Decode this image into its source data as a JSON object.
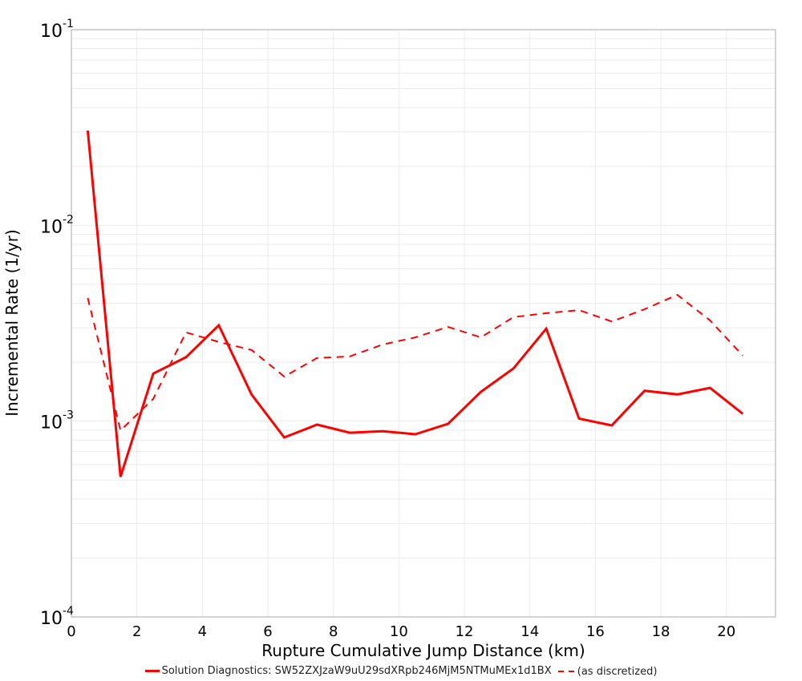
{
  "chart_data": {
    "type": "line",
    "title": "",
    "xlabel": "Rupture Cumulative Jump Distance (km)",
    "ylabel": "Incremental Rate (1/yr)",
    "xlim": [
      0,
      21.5
    ],
    "ylim": [
      0.0001,
      0.1
    ],
    "yscale": "log",
    "grid": true,
    "legend_position": "bottom",
    "x_ticks": [
      0,
      2,
      4,
      6,
      8,
      10,
      12,
      14,
      16,
      18,
      20
    ],
    "y_ticks": [
      {
        "base": "10",
        "exp": "-1",
        "value": 0.1
      },
      {
        "base": "10",
        "exp": "-2",
        "value": 0.01
      },
      {
        "base": "10",
        "exp": "-3",
        "value": 0.001
      },
      {
        "base": "10",
        "exp": "-4",
        "value": 0.0001
      }
    ],
    "x": [
      0.5,
      1.5,
      2.5,
      3.5,
      4.5,
      5.5,
      6.5,
      7.5,
      8.5,
      9.5,
      10.5,
      11.5,
      12.5,
      13.5,
      14.5,
      15.5,
      16.5,
      17.5,
      18.5,
      19.5,
      20.5
    ],
    "series": [
      {
        "name": "Solution Diagnostics: SW52ZXJzaW9uU29sdXRpb246MjM5NTMuMEx1d1BX",
        "style": "solid",
        "color": "#ff0000",
        "values": [
          0.0305,
          0.00052,
          0.00175,
          0.00212,
          0.00309,
          0.00137,
          0.000826,
          0.00096,
          0.000873,
          0.000889,
          0.000857,
          0.000969,
          0.00141,
          0.00186,
          0.00297,
          0.00103,
          0.000951,
          0.00143,
          0.00137,
          0.00148,
          0.00109
        ]
      },
      {
        "name": "(as discretized)",
        "style": "dashed",
        "color": "#ff0000",
        "values": [
          0.00426,
          0.000897,
          0.0013,
          0.00284,
          0.00254,
          0.00231,
          0.00169,
          0.0021,
          0.00214,
          0.00246,
          0.00268,
          0.00303,
          0.00268,
          0.0034,
          0.00356,
          0.00369,
          0.00323,
          0.00373,
          0.00442,
          0.00327,
          0.00216
        ]
      }
    ]
  },
  "legend": {
    "items": [
      {
        "label": "Solution Diagnostics: SW52ZXJzaW9uU29sdXRpb246MjM5NTMuMEx1d1BX"
      },
      {
        "label": "(as discretized)"
      }
    ]
  }
}
